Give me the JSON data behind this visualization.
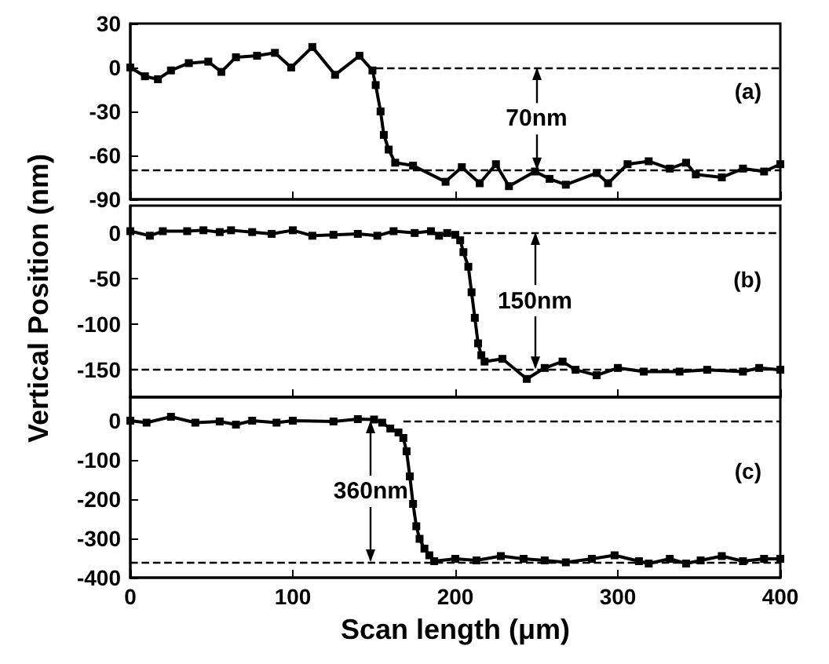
{
  "chart_data": [
    {
      "type": "line",
      "title": "(a)",
      "marker": "square",
      "line_style": "solid",
      "grid": false,
      "tick_labels": "y",
      "xlim": [
        0,
        400
      ],
      "xticks": [
        0,
        100,
        200,
        300,
        400
      ],
      "ylim": [
        -90,
        30
      ],
      "yticks": [
        -90,
        -60,
        -30,
        0,
        30
      ],
      "ref_lines": [
        {
          "axis": "y",
          "value": 0,
          "color": "#000000",
          "line_style": "dashed"
        },
        {
          "axis": "y",
          "value": -70,
          "color": "#000000",
          "line_style": "dashed"
        }
      ],
      "annotations": [
        {
          "text": "70nm",
          "x": 250,
          "y": -70
        }
      ],
      "series": [
        {
          "color": "#000000",
          "x": [
            0,
            9,
            17,
            25,
            36,
            48,
            56,
            65,
            78,
            89,
            99,
            112,
            126,
            141,
            149,
            151,
            154,
            156,
            159,
            163,
            174,
            194,
            204,
            215,
            225,
            233,
            249,
            258,
            268,
            287,
            294,
            306,
            319,
            332,
            342,
            348,
            364,
            377,
            390,
            400
          ],
          "values": [
            0,
            -6,
            -8,
            -2,
            3,
            4,
            -3,
            7,
            8,
            10,
            0,
            14,
            -5,
            8,
            -2,
            -12,
            -30,
            -46,
            -56,
            -65,
            -67,
            -78,
            -68,
            -79,
            -66,
            -81,
            -71,
            -76,
            -80,
            -72,
            -79,
            -66,
            -64,
            -69,
            -65,
            -73,
            -75,
            -69,
            -71,
            -66
          ]
        }
      ]
    },
    {
      "type": "line",
      "title": "(b)",
      "ylabel": "Vertical Position (nm)",
      "marker": "square",
      "line_style": "solid",
      "grid": false,
      "tick_labels": "y",
      "xlim": [
        0,
        400
      ],
      "xticks": [
        0,
        100,
        200,
        300,
        400
      ],
      "ylim": [
        -180,
        30
      ],
      "yticks": [
        -150,
        -100,
        -50,
        0
      ],
      "ref_lines": [
        {
          "axis": "y",
          "value": 0,
          "color": "#000000",
          "line_style": "dashed"
        },
        {
          "axis": "y",
          "value": -150,
          "color": "#000000",
          "line_style": "dashed"
        }
      ],
      "annotations": [
        {
          "text": "150nm",
          "x": 249,
          "y": -150
        }
      ],
      "series": [
        {
          "color": "#000000",
          "x": [
            0,
            12,
            20,
            35,
            45,
            55,
            62,
            75,
            87,
            100,
            112,
            125,
            140,
            152,
            162,
            175,
            185,
            190,
            195,
            200,
            203,
            205,
            208,
            210,
            212,
            214,
            216,
            218,
            229,
            244,
            255,
            266,
            274,
            287,
            300,
            316,
            338,
            355,
            377,
            387,
            400
          ],
          "values": [
            2,
            -3,
            2,
            2,
            3,
            1,
            3,
            1,
            -1,
            3,
            -3,
            -2,
            -1,
            -3,
            2,
            0,
            2,
            -3,
            0,
            -2,
            -8,
            -21,
            -37,
            -65,
            -93,
            -121,
            -134,
            -141,
            -138,
            -160,
            -148,
            -141,
            -150,
            -156,
            -148,
            -152,
            -152,
            -150,
            -152,
            -148,
            -150
          ]
        }
      ]
    },
    {
      "type": "line",
      "title": "(c)",
      "xlabel": "Scan length (μm)",
      "marker": "square",
      "line_style": "solid",
      "grid": false,
      "xlim": [
        0,
        400
      ],
      "xticks": [
        0,
        100,
        200,
        300,
        400
      ],
      "ylim": [
        -400,
        60
      ],
      "yticks": [
        -400,
        -300,
        -200,
        -100,
        0
      ],
      "ref_lines": [
        {
          "axis": "y",
          "value": 0,
          "color": "#000000",
          "line_style": "dashed"
        },
        {
          "axis": "y",
          "value": -360,
          "color": "#000000",
          "line_style": "dashed"
        }
      ],
      "annotations": [
        {
          "text": "360nm",
          "x": 148,
          "y": -360
        }
      ],
      "series": [
        {
          "color": "#000000",
          "x": [
            0,
            10,
            25,
            40,
            55,
            65,
            75,
            90,
            100,
            125,
            140,
            150,
            155,
            160,
            165,
            168,
            170,
            172,
            174,
            176,
            178,
            181,
            184,
            187,
            200,
            213,
            228,
            242,
            255,
            268,
            284,
            298,
            313,
            319,
            332,
            342,
            351,
            364,
            377,
            390,
            400
          ],
          "values": [
            0,
            -5,
            10,
            -5,
            -2,
            -10,
            0,
            -5,
            0,
            -2,
            4,
            3,
            -5,
            -20,
            -30,
            -44,
            -78,
            -142,
            -212,
            -269,
            -301,
            -326,
            -343,
            -358,
            -352,
            -356,
            -345,
            -352,
            -356,
            -361,
            -352,
            -343,
            -358,
            -364,
            -352,
            -364,
            -356,
            -345,
            -358,
            -352,
            -352
          ]
        }
      ]
    }
  ]
}
